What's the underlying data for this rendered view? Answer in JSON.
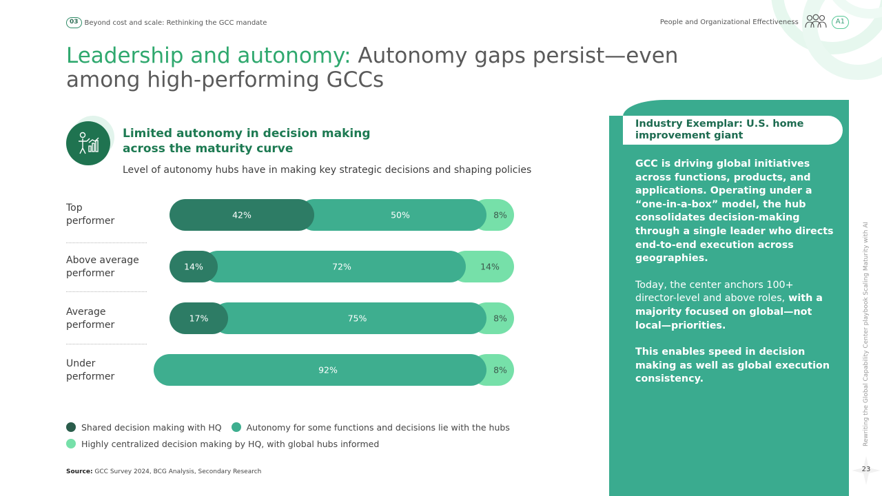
{
  "header": {
    "chapter_number": "03",
    "chapter_title": "Beyond cost and scale: Rethinking the GCC mandate",
    "section": "People and Organizational Effectiveness",
    "section_badge": "A1"
  },
  "title": {
    "highlight": "Leadership and autonomy:",
    "rest": " Autonomy gaps persist—even among high-performing GCCs"
  },
  "subheading": {
    "title": "Limited autonomy in decision making across the maturity curve",
    "description": "Level of autonomy hubs have in making key strategic decisions and shaping policies"
  },
  "chart_data": {
    "type": "bar",
    "orientation": "horizontal",
    "stacked": true,
    "unit": "%",
    "categories": [
      "Top performer",
      "Above average performer",
      "Average performer",
      "Under performer"
    ],
    "category_lines": [
      [
        "Top",
        "performer"
      ],
      [
        "Above average",
        "performer"
      ],
      [
        "Average",
        "performer"
      ],
      [
        "Under",
        "performer"
      ]
    ],
    "series": [
      {
        "name": "Shared decision making with HQ",
        "color": "#2d7c65",
        "values": [
          42,
          14,
          17,
          0
        ],
        "labels": [
          "42%",
          "14%",
          "17%",
          ""
        ]
      },
      {
        "name": "Autonomy for some functions and decisions lie with the hubs",
        "color": "#3eae8f",
        "values": [
          50,
          72,
          75,
          92
        ],
        "labels": [
          "50%",
          "72%",
          "75%",
          "92%"
        ]
      },
      {
        "name": "Highly centralized decision making by HQ, with global hubs informed",
        "color": "#76e0a9",
        "values": [
          8,
          14,
          8,
          8
        ],
        "labels": [
          "8%",
          "14%",
          "8%",
          "8%"
        ]
      }
    ],
    "xlim": [
      0,
      100
    ],
    "legend_position": "bottom"
  },
  "source": {
    "label": "Source:",
    "text": " GCC Survey 2024, BCG Analysis, Secondary Research"
  },
  "exemplar": {
    "heading": "Industry Exemplar: U.S. home improvement giant",
    "para1": "GCC is driving global initiatives across functions, products, and applications. Operating under a “one-in-a-box” model, the hub consolidates decision-making through a single leader who directs end-to-end execution across geographies.",
    "para2_regular": "Today, the center anchors 100+ director-level and above roles,",
    "para2_bold": " with a majority focused on global—not local—priorities.",
    "para3": "This enables speed in decision making as well as global execution consistency."
  },
  "side_text": "Rewriting the Global Capability Center playbook Scaling Maturity with AI",
  "page_number": "23",
  "icons": [
    "people-icon",
    "decision-person-chart-icon",
    "star-page-icon"
  ]
}
